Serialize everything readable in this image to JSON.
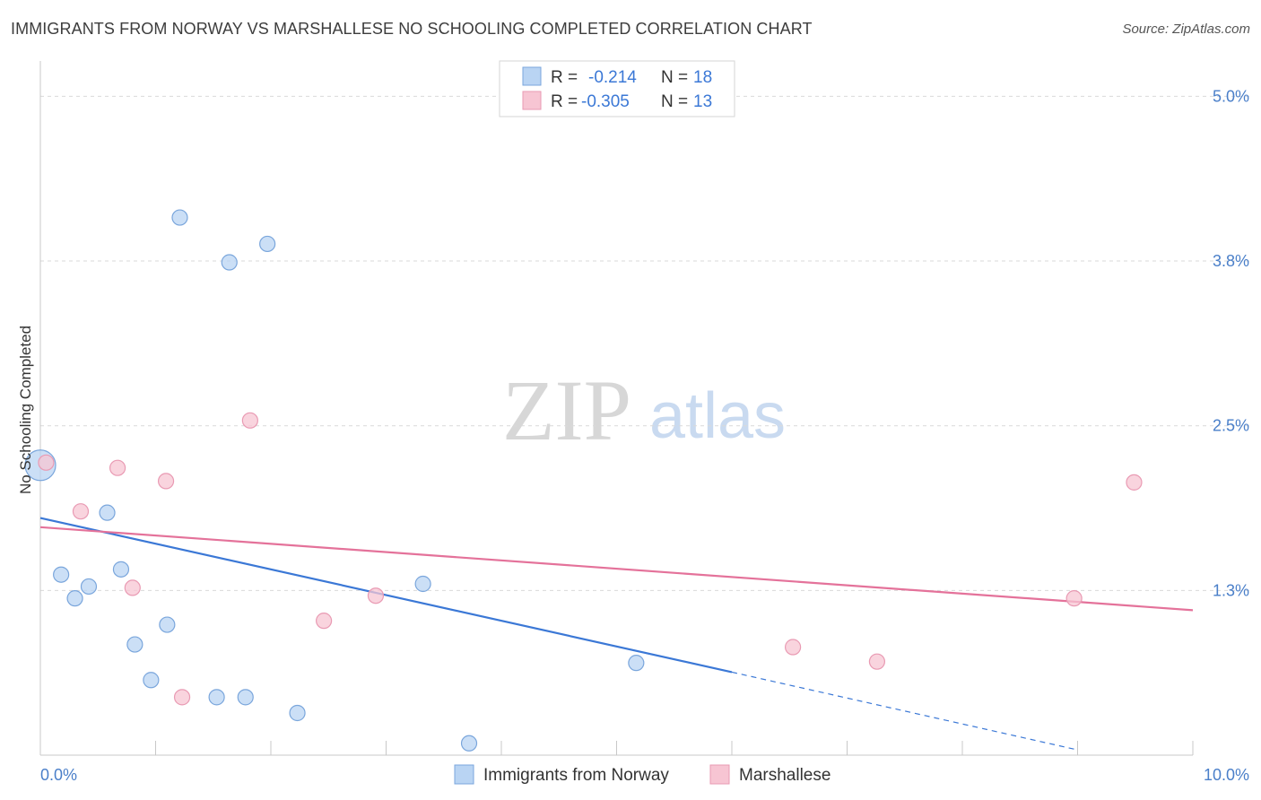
{
  "header": {
    "title": "IMMIGRANTS FROM NORWAY VS MARSHALLESE NO SCHOOLING COMPLETED CORRELATION CHART",
    "source": "Source: ZipAtlas.com"
  },
  "watermark": {
    "zip": "ZIP",
    "atlas": "atlas"
  },
  "legend": {
    "entries": [
      {
        "r_label": "R =",
        "r_value": "-0.214",
        "n_label": "N =",
        "n_value": "18"
      },
      {
        "r_label": "R =",
        "r_value": "-0.305",
        "n_label": "N =",
        "n_value": "13"
      }
    ]
  },
  "bottom_legend": [
    "Immigrants from Norway",
    "Marshallese"
  ],
  "chart_data": {
    "type": "scatter",
    "title": "IMMIGRANTS FROM NORWAY VS MARSHALLESE NO SCHOOLING COMPLETED CORRELATION CHART",
    "xlabel": "",
    "ylabel": "No Schooling Completed",
    "xlim": [
      0,
      10
    ],
    "ylim": [
      0,
      5.2
    ],
    "x_ticks": [
      "0.0%",
      "10.0%"
    ],
    "y_ticks": [
      {
        "value": 5.0,
        "label": "5.0%"
      },
      {
        "value": 3.75,
        "label": "3.8%"
      },
      {
        "value": 2.5,
        "label": "2.5%"
      },
      {
        "value": 1.25,
        "label": "1.3%"
      }
    ],
    "grid": true,
    "legend_position": "top-center",
    "colors": {
      "norway_fill": "#b9d4f3",
      "norway_stroke": "#7aa6dc",
      "norway_line": "#3b78d6",
      "marsh_fill": "#f7c5d3",
      "marsh_stroke": "#e99ab3",
      "marsh_line": "#e4729a",
      "tick_text": "#4a7fc9"
    },
    "series": [
      {
        "name": "Immigrants from Norway",
        "points": [
          {
            "x": 0.0,
            "y": 2.2,
            "big": true
          },
          {
            "x": 0.18,
            "y": 1.37
          },
          {
            "x": 0.3,
            "y": 1.19
          },
          {
            "x": 0.42,
            "y": 1.28
          },
          {
            "x": 0.58,
            "y": 1.84
          },
          {
            "x": 0.7,
            "y": 1.41
          },
          {
            "x": 0.82,
            "y": 0.84
          },
          {
            "x": 0.96,
            "y": 0.57
          },
          {
            "x": 1.1,
            "y": 0.99
          },
          {
            "x": 1.21,
            "y": 4.08
          },
          {
            "x": 1.53,
            "y": 0.44
          },
          {
            "x": 1.64,
            "y": 3.74
          },
          {
            "x": 1.78,
            "y": 0.44
          },
          {
            "x": 1.97,
            "y": 3.88
          },
          {
            "x": 2.23,
            "y": 0.32
          },
          {
            "x": 3.32,
            "y": 1.3
          },
          {
            "x": 3.72,
            "y": 0.09
          },
          {
            "x": 5.17,
            "y": 0.7
          }
        ],
        "trend": {
          "x0": 0.0,
          "y0": 1.8,
          "x1": 6.0,
          "y1": 0.63,
          "dash_to_x": 9.0,
          "dash_to_y": 0.04
        }
      },
      {
        "name": "Marshallese",
        "points": [
          {
            "x": 0.05,
            "y": 2.22
          },
          {
            "x": 0.35,
            "y": 1.85
          },
          {
            "x": 0.67,
            "y": 2.18
          },
          {
            "x": 0.8,
            "y": 1.27
          },
          {
            "x": 1.09,
            "y": 2.08
          },
          {
            "x": 1.23,
            "y": 0.44
          },
          {
            "x": 1.82,
            "y": 2.54
          },
          {
            "x": 2.46,
            "y": 1.02
          },
          {
            "x": 2.91,
            "y": 1.21
          },
          {
            "x": 6.53,
            "y": 0.82
          },
          {
            "x": 7.26,
            "y": 0.71
          },
          {
            "x": 8.97,
            "y": 1.19
          },
          {
            "x": 9.49,
            "y": 2.07
          }
        ],
        "trend": {
          "x0": 0.0,
          "y0": 1.73,
          "x1": 10.0,
          "y1": 1.1
        }
      }
    ]
  }
}
